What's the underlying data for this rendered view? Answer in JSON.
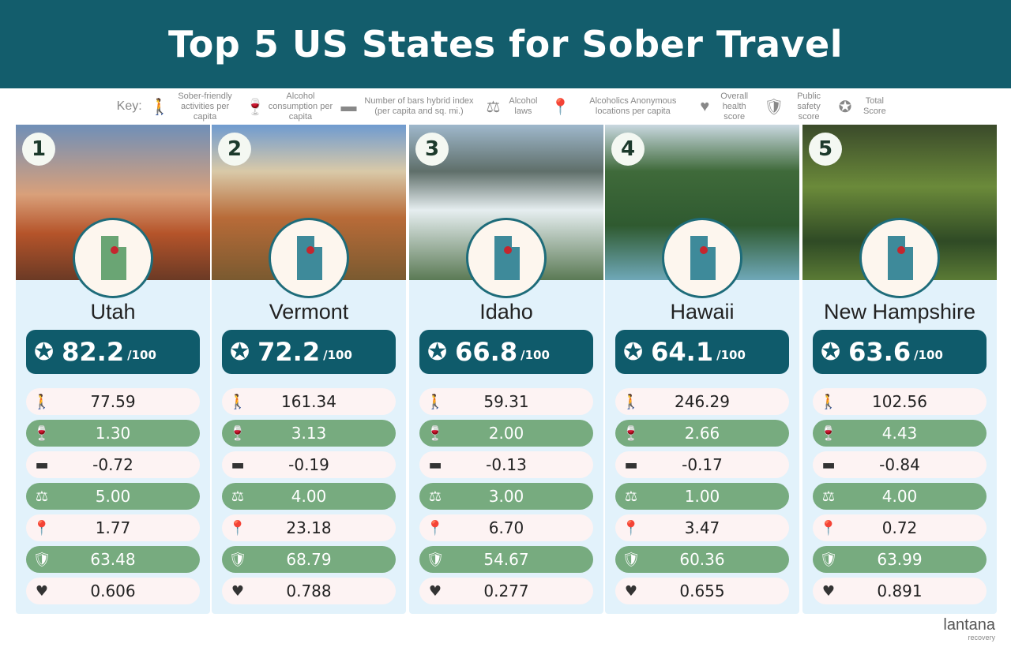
{
  "title": "Top 5 US States for Sober Travel",
  "key": {
    "label": "Key:",
    "items": [
      {
        "icon": "hiker-icon",
        "glyph": "🚶",
        "text": "Sober-friendly activities per capita"
      },
      {
        "icon": "wine-bottle-icon",
        "glyph": "🍷",
        "text": "Alcohol consumption per capita"
      },
      {
        "icon": "bar-counter-icon",
        "glyph": "▬",
        "text": "Number of bars hybrid index (per capita and sq. mi.)"
      },
      {
        "icon": "gavel-icon",
        "glyph": "⚖",
        "text": "Alcohol laws"
      },
      {
        "icon": "location-pin-icon",
        "glyph": "📍",
        "text": "Alcoholics Anonymous locations per capita"
      },
      {
        "icon": "heartbeat-icon",
        "glyph": "♥",
        "text": "Overall health score"
      },
      {
        "icon": "shield-check-icon",
        "glyph": "🛡",
        "text": "Public safety score"
      },
      {
        "icon": "award-medal-icon",
        "glyph": "✪",
        "text": "Total Score"
      }
    ]
  },
  "colors": {
    "header": "#135d6c",
    "score_pill": "#0f5b6b",
    "green_row": "#77ab7f",
    "light_row": "#fdf3f3",
    "card": "#e2f2fb"
  },
  "row_icons": [
    "hiker-icon",
    "wine-bottle-icon",
    "bar-counter-icon",
    "gavel-icon",
    "location-pin-icon",
    "shield-check-icon",
    "heartbeat-icon"
  ],
  "states": [
    {
      "rank": "1",
      "name": "Utah",
      "score": "82.2",
      "out_of": "/100",
      "values": [
        "77.59",
        "1.30",
        "-0.72",
        "5.00",
        "1.77",
        "63.48",
        "0.606"
      ]
    },
    {
      "rank": "2",
      "name": "Vermont",
      "score": "72.2",
      "out_of": "/100",
      "values": [
        "161.34",
        "3.13",
        "-0.19",
        "4.00",
        "23.18",
        "68.79",
        "0.788"
      ]
    },
    {
      "rank": "3",
      "name": "Idaho",
      "score": "66.8",
      "out_of": "/100",
      "values": [
        "59.31",
        "2.00",
        "-0.13",
        "3.00",
        "6.70",
        "54.67",
        "0.277"
      ]
    },
    {
      "rank": "4",
      "name": "Hawaii",
      "score": "64.1",
      "out_of": "/100",
      "values": [
        "246.29",
        "2.66",
        "-0.17",
        "1.00",
        "3.47",
        "60.36",
        "0.655"
      ]
    },
    {
      "rank": "5",
      "name": "New Hampshire",
      "score": "63.6",
      "out_of": "/100",
      "values": [
        "102.56",
        "4.43",
        "-0.84",
        "4.00",
        "0.72",
        "63.99",
        "0.891"
      ]
    }
  ],
  "logo": {
    "name": "lantana",
    "sub": "recovery"
  }
}
